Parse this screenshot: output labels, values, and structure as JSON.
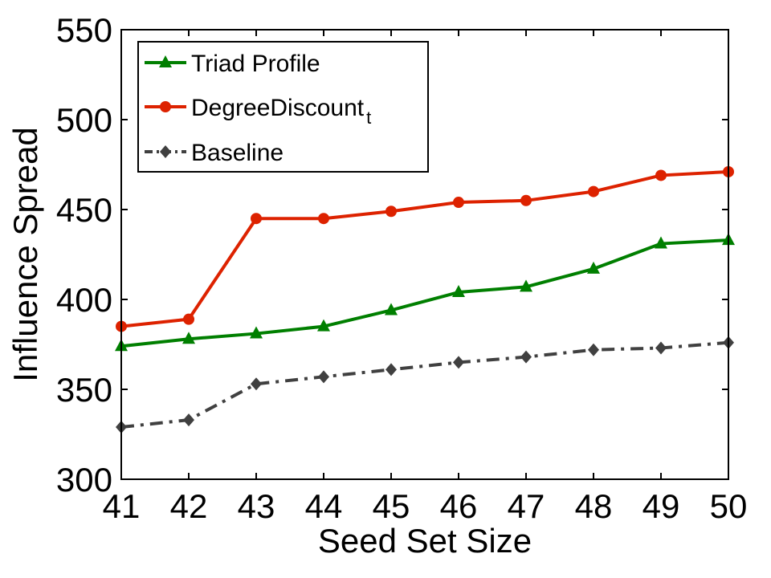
{
  "chart_data": {
    "type": "line",
    "title": "",
    "xlabel": "Seed Set Size",
    "ylabel": "Influence Spread",
    "x": [
      41,
      42,
      43,
      44,
      45,
      46,
      47,
      48,
      49,
      50
    ],
    "xlim": [
      41,
      50
    ],
    "ylim": [
      300,
      550
    ],
    "yticks": [
      300,
      350,
      400,
      450,
      500,
      550
    ],
    "grid": false,
    "legend_position": "top-left",
    "series": [
      {
        "name": "Triad Profile",
        "color": "#007f00",
        "marker": "triangle",
        "line_style": "solid",
        "values": [
          374,
          378,
          381,
          385,
          394,
          404,
          407,
          417,
          431,
          433
        ]
      },
      {
        "name": "DegreeDiscount",
        "name_subscript": "t",
        "color": "#dd2200",
        "marker": "circle",
        "line_style": "solid",
        "values": [
          385,
          389,
          445,
          445,
          449,
          454,
          455,
          460,
          469,
          471
        ]
      },
      {
        "name": "Baseline",
        "color": "#404040",
        "marker": "diamond",
        "line_style": "dash-dot",
        "values": [
          329,
          333,
          353,
          357,
          361,
          365,
          368,
          372,
          373,
          376
        ]
      }
    ]
  }
}
